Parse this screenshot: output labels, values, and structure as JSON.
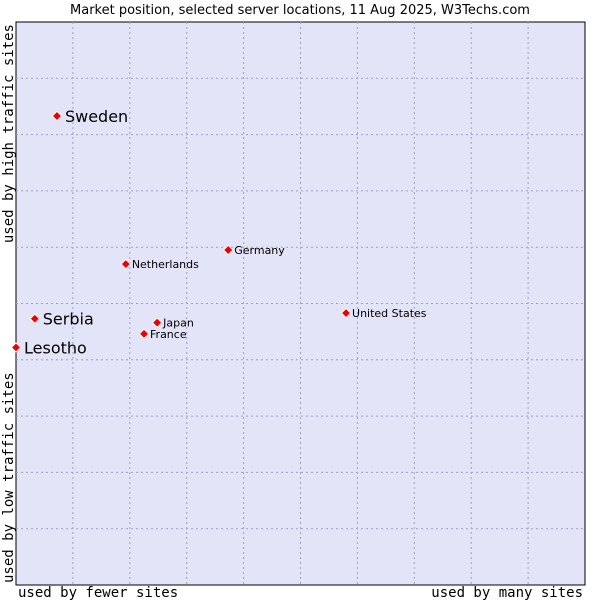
{
  "chart_data": {
    "type": "scatter",
    "title": "Market position, selected server locations, 11 Aug 2025, W3Techs.com",
    "xlabel_left": "used by fewer sites",
    "xlabel_right": "used by many sites",
    "ylabel_top": "used by high traffic sites",
    "ylabel_bottom": "used by low traffic sites",
    "xlim": [
      0,
      10
    ],
    "ylim": [
      0,
      10
    ],
    "grid": true,
    "legend": "none",
    "colors": {
      "plot_bg": "#e4e4f8",
      "grid": "#a0a0c0",
      "marker": "#ee0000",
      "marker_edge": "#ffffff"
    },
    "points": [
      {
        "name": "Sweden",
        "x": 0.72,
        "y": 8.33,
        "emphasis": true
      },
      {
        "name": "Germany",
        "x": 3.73,
        "y": 5.95,
        "emphasis": false
      },
      {
        "name": "Netherlands",
        "x": 1.93,
        "y": 5.7,
        "emphasis": false
      },
      {
        "name": "United States",
        "x": 5.8,
        "y": 4.83,
        "emphasis": false
      },
      {
        "name": "Serbia",
        "x": 0.33,
        "y": 4.73,
        "emphasis": true
      },
      {
        "name": "Japan",
        "x": 2.48,
        "y": 4.66,
        "emphasis": false
      },
      {
        "name": "France",
        "x": 2.25,
        "y": 4.46,
        "emphasis": false
      },
      {
        "name": "Lesotho",
        "x": 0.0,
        "y": 4.22,
        "emphasis": true
      }
    ]
  }
}
